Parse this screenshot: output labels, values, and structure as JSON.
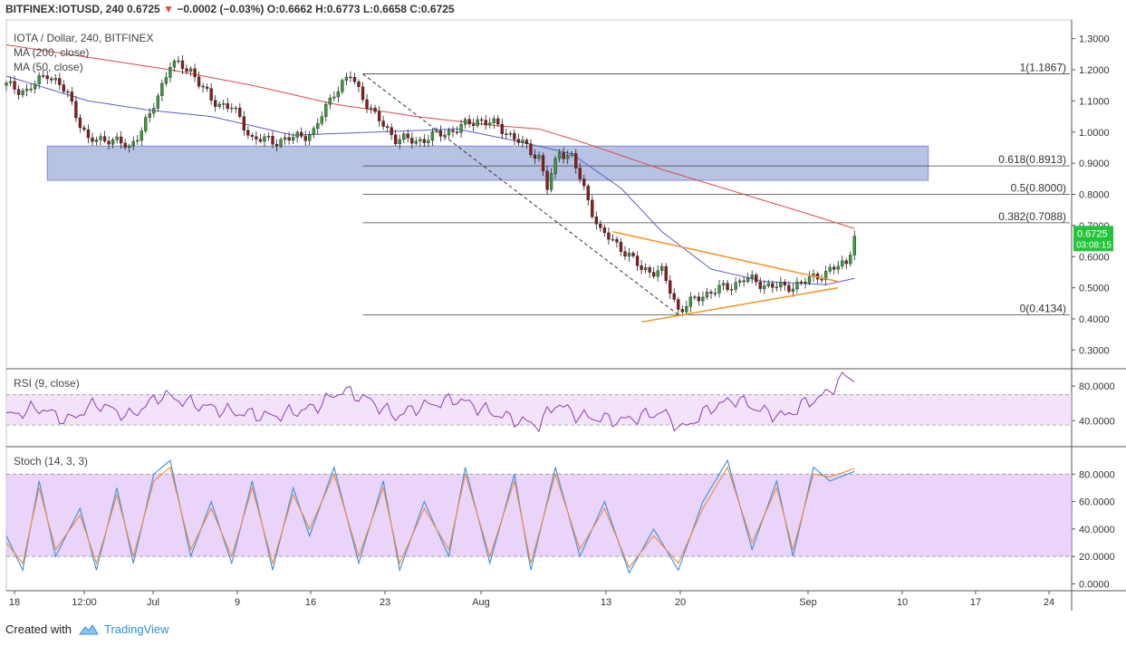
{
  "header": {
    "symbol": "BITFINEX:IOTUSD, 240",
    "last": "0.6725",
    "change_arrow": "▼",
    "change": "−0.0002 (−0.03%)",
    "open": "O:0.6662",
    "high": "H:0.6773",
    "low": "L:0.6658",
    "close": "C:0.6725"
  },
  "legend": {
    "title": "IOTA / Dollar, 240, BITFINEX",
    "ma200": "MA (200, close)",
    "ma50": "MA (50, close)",
    "rsi": "RSI (9, close)",
    "stoch": "Stoch (14, 3, 3)"
  },
  "footer": {
    "created": "Created with",
    "brand": "TradingView"
  },
  "colors": {
    "bull": "#3a9b3a",
    "bear": "#8b1a1a",
    "ma200": "#e0484a",
    "ma50": "#5b5fc7",
    "zone": "#9aa8d9",
    "triangle": "#f7931e",
    "rsi": "#8b3fb0",
    "stoch_k": "#3a8fd8",
    "stoch_d": "#f28a3c",
    "price_tag": "#22c43a"
  },
  "price_tag": {
    "price": "0.6725",
    "countdown": "03:08:15"
  },
  "chart_data": [
    {
      "type": "candlestick",
      "title": "IOTA / Dollar, 240, BITFINEX",
      "yaxis_ticks": [
        "1.3000",
        "1.2000",
        "1.1000",
        "1.0000",
        "0.9000",
        "0.8000",
        "0.7000",
        "0.6000",
        "0.5000",
        "0.4000",
        "0.3000"
      ],
      "xaxis_ticks": [
        "18",
        "12:00",
        "Jul",
        "9",
        "16",
        "23",
        "Aug",
        "13",
        "20",
        "Sep",
        "10",
        "17",
        "24"
      ],
      "ylim": [
        0.24,
        1.36
      ],
      "close_path": [
        [
          0,
          1.15
        ],
        [
          5,
          1.13
        ],
        [
          10,
          1.19
        ],
        [
          15,
          1.12
        ],
        [
          20,
          0.97
        ],
        [
          25,
          0.98
        ],
        [
          30,
          0.95
        ],
        [
          35,
          1.05
        ],
        [
          40,
          1.22
        ],
        [
          45,
          1.2
        ],
        [
          50,
          1.1
        ],
        [
          55,
          1.08
        ],
        [
          60,
          0.98
        ],
        [
          65,
          0.97
        ],
        [
          70,
          0.98
        ],
        [
          75,
          1.0
        ],
        [
          80,
          1.13
        ],
        [
          84,
          1.18
        ],
        [
          90,
          1.05
        ],
        [
          95,
          0.98
        ],
        [
          100,
          0.97
        ],
        [
          105,
          0.99
        ],
        [
          110,
          1.01
        ],
        [
          115,
          1.04
        ],
        [
          120,
          1.02
        ],
        [
          125,
          0.97
        ],
        [
          130,
          0.92
        ],
        [
          132,
          0.82
        ],
        [
          135,
          0.94
        ],
        [
          138,
          0.92
        ],
        [
          142,
          0.78
        ],
        [
          145,
          0.68
        ],
        [
          150,
          0.63
        ],
        [
          155,
          0.56
        ],
        [
          160,
          0.55
        ],
        [
          164,
          0.43
        ],
        [
          168,
          0.46
        ],
        [
          172,
          0.49
        ],
        [
          176,
          0.5
        ],
        [
          180,
          0.53
        ],
        [
          185,
          0.51
        ],
        [
          190,
          0.5
        ],
        [
          195,
          0.52
        ],
        [
          200,
          0.55
        ],
        [
          205,
          0.58
        ],
        [
          207,
          0.67
        ]
      ],
      "ma200_path": [
        [
          0,
          1.28
        ],
        [
          20,
          1.24
        ],
        [
          40,
          1.2
        ],
        [
          60,
          1.15
        ],
        [
          80,
          1.09
        ],
        [
          100,
          1.05
        ],
        [
          120,
          1.02
        ],
        [
          130,
          1.01
        ],
        [
          140,
          0.97
        ],
        [
          160,
          0.88
        ],
        [
          180,
          0.8
        ],
        [
          195,
          0.74
        ],
        [
          207,
          0.69
        ]
      ],
      "ma50_path": [
        [
          0,
          1.18
        ],
        [
          20,
          1.1
        ],
        [
          35,
          1.07
        ],
        [
          50,
          1.05
        ],
        [
          70,
          0.99
        ],
        [
          90,
          1.0
        ],
        [
          110,
          1.01
        ],
        [
          125,
          0.97
        ],
        [
          138,
          0.93
        ],
        [
          150,
          0.82
        ],
        [
          160,
          0.68
        ],
        [
          172,
          0.56
        ],
        [
          185,
          0.52
        ],
        [
          200,
          0.51
        ],
        [
          207,
          0.53
        ]
      ],
      "resistance_zone": {
        "x_from": 10,
        "x_to": 225,
        "y_low": 0.845,
        "y_high": 0.955
      },
      "fibonacci": [
        {
          "label": "1(1.1867)",
          "value": 1.1867
        },
        {
          "label": "0.618(0.8913)",
          "value": 0.8913
        },
        {
          "label": "0.5(0.8000)",
          "value": 0.8
        },
        {
          "label": "0.382(0.7088)",
          "value": 0.7088
        },
        {
          "label": "0(0.4134)",
          "value": 0.4134
        }
      ],
      "fib_x_from": 87,
      "trend_line_dashed": [
        [
          87,
          1.1867
        ],
        [
          164,
          0.4134
        ]
      ],
      "triangle_upper": [
        [
          148,
          0.68
        ],
        [
          203,
          0.52
        ]
      ],
      "triangle_lower": [
        [
          155,
          0.39
        ],
        [
          203,
          0.5
        ]
      ],
      "last_price": 0.6725
    },
    {
      "type": "line",
      "title": "RSI (9, close)",
      "yaxis_ticks": [
        "80.0000",
        "40.0000"
      ],
      "ylim": [
        10,
        100
      ],
      "band": [
        35,
        70
      ],
      "series": [
        {
          "values_path": [
            [
              0,
              45
            ],
            [
              8,
              55
            ],
            [
              15,
              40
            ],
            [
              22,
              60
            ],
            [
              30,
              45
            ],
            [
              38,
              70
            ],
            [
              45,
              60
            ],
            [
              55,
              50
            ],
            [
              65,
              45
            ],
            [
              75,
              55
            ],
            [
              82,
              75
            ],
            [
              88,
              65
            ],
            [
              95,
              45
            ],
            [
              100,
              55
            ],
            [
              110,
              65
            ],
            [
              118,
              50
            ],
            [
              125,
              40
            ],
            [
              130,
              35
            ],
            [
              134,
              60
            ],
            [
              140,
              45
            ],
            [
              150,
              40
            ],
            [
              160,
              50
            ],
            [
              165,
              30
            ],
            [
              172,
              55
            ],
            [
              178,
              65
            ],
            [
              185,
              50
            ],
            [
              190,
              45
            ],
            [
              195,
              60
            ],
            [
              200,
              70
            ],
            [
              203,
              85
            ],
            [
              205,
              92
            ],
            [
              207,
              88
            ]
          ]
        }
      ]
    },
    {
      "type": "line",
      "title": "Stoch (14, 3, 3)",
      "yaxis_ticks": [
        "80.0000",
        "60.0000",
        "40.0000",
        "20.0000",
        "0.0000"
      ],
      "ylim": [
        -5,
        100
      ],
      "band": [
        20,
        80
      ],
      "series": [
        {
          "values_path": [
            [
              0,
              35
            ],
            [
              4,
              10
            ],
            [
              8,
              75
            ],
            [
              12,
              20
            ],
            [
              18,
              55
            ],
            [
              22,
              10
            ],
            [
              27,
              70
            ],
            [
              31,
              15
            ],
            [
              36,
              80
            ],
            [
              40,
              90
            ],
            [
              45,
              20
            ],
            [
              50,
              60
            ],
            [
              55,
              15
            ],
            [
              60,
              75
            ],
            [
              65,
              10
            ],
            [
              70,
              70
            ],
            [
              74,
              35
            ],
            [
              80,
              85
            ],
            [
              86,
              15
            ],
            [
              92,
              75
            ],
            [
              96,
              10
            ],
            [
              102,
              60
            ],
            [
              108,
              20
            ],
            [
              112,
              85
            ],
            [
              118,
              15
            ],
            [
              124,
              80
            ],
            [
              128,
              10
            ],
            [
              134,
              85
            ],
            [
              140,
              20
            ],
            [
              146,
              60
            ],
            [
              152,
              8
            ],
            [
              158,
              40
            ],
            [
              164,
              10
            ],
            [
              170,
              60
            ],
            [
              176,
              90
            ],
            [
              182,
              25
            ],
            [
              188,
              75
            ],
            [
              192,
              20
            ],
            [
              197,
              85
            ],
            [
              201,
              75
            ],
            [
              207,
              82
            ]
          ]
        },
        {
          "values_path": [
            [
              0,
              30
            ],
            [
              4,
              15
            ],
            [
              8,
              70
            ],
            [
              12,
              25
            ],
            [
              18,
              50
            ],
            [
              22,
              15
            ],
            [
              27,
              65
            ],
            [
              31,
              20
            ],
            [
              36,
              75
            ],
            [
              40,
              85
            ],
            [
              45,
              25
            ],
            [
              50,
              55
            ],
            [
              55,
              20
            ],
            [
              60,
              70
            ],
            [
              65,
              15
            ],
            [
              70,
              65
            ],
            [
              74,
              40
            ],
            [
              80,
              80
            ],
            [
              86,
              20
            ],
            [
              92,
              70
            ],
            [
              96,
              15
            ],
            [
              102,
              55
            ],
            [
              108,
              25
            ],
            [
              112,
              80
            ],
            [
              118,
              20
            ],
            [
              124,
              75
            ],
            [
              128,
              15
            ],
            [
              134,
              80
            ],
            [
              140,
              25
            ],
            [
              146,
              55
            ],
            [
              152,
              12
            ],
            [
              158,
              35
            ],
            [
              164,
              15
            ],
            [
              170,
              55
            ],
            [
              176,
              85
            ],
            [
              182,
              30
            ],
            [
              188,
              70
            ],
            [
              192,
              25
            ],
            [
              197,
              80
            ],
            [
              201,
              78
            ],
            [
              207,
              84
            ]
          ]
        }
      ]
    }
  ]
}
